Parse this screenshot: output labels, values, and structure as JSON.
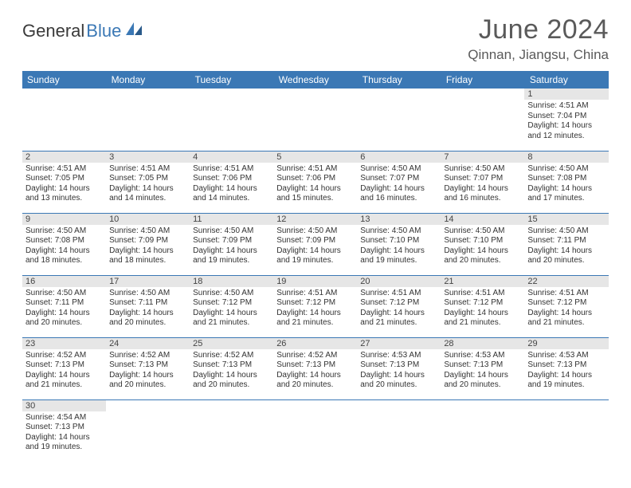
{
  "logo": {
    "text1": "General",
    "text2": "Blue"
  },
  "title": "June 2024",
  "location": "Qinnan, Jiangsu, China",
  "colors": {
    "header_bg": "#3b78b5",
    "header_text": "#ffffff",
    "daynum_bg": "#e6e6e6",
    "row_border": "#3b78b5",
    "title_color": "#5a5a5a"
  },
  "weekdays": [
    "Sunday",
    "Monday",
    "Tuesday",
    "Wednesday",
    "Thursday",
    "Friday",
    "Saturday"
  ],
  "labels": {
    "sunrise": "Sunrise:",
    "sunset": "Sunset:",
    "daylight_prefix": "Daylight:",
    "hours_word": "hours",
    "and_word": "and",
    "minutes_word": "minutes."
  },
  "grid": [
    [
      null,
      null,
      null,
      null,
      null,
      null,
      {
        "n": 1,
        "sr": "4:51 AM",
        "ss": "7:04 PM",
        "dh": 14,
        "dm": 12
      }
    ],
    [
      {
        "n": 2,
        "sr": "4:51 AM",
        "ss": "7:05 PM",
        "dh": 14,
        "dm": 13
      },
      {
        "n": 3,
        "sr": "4:51 AM",
        "ss": "7:05 PM",
        "dh": 14,
        "dm": 14
      },
      {
        "n": 4,
        "sr": "4:51 AM",
        "ss": "7:06 PM",
        "dh": 14,
        "dm": 14
      },
      {
        "n": 5,
        "sr": "4:51 AM",
        "ss": "7:06 PM",
        "dh": 14,
        "dm": 15
      },
      {
        "n": 6,
        "sr": "4:50 AM",
        "ss": "7:07 PM",
        "dh": 14,
        "dm": 16
      },
      {
        "n": 7,
        "sr": "4:50 AM",
        "ss": "7:07 PM",
        "dh": 14,
        "dm": 16
      },
      {
        "n": 8,
        "sr": "4:50 AM",
        "ss": "7:08 PM",
        "dh": 14,
        "dm": 17
      }
    ],
    [
      {
        "n": 9,
        "sr": "4:50 AM",
        "ss": "7:08 PM",
        "dh": 14,
        "dm": 18
      },
      {
        "n": 10,
        "sr": "4:50 AM",
        "ss": "7:09 PM",
        "dh": 14,
        "dm": 18
      },
      {
        "n": 11,
        "sr": "4:50 AM",
        "ss": "7:09 PM",
        "dh": 14,
        "dm": 19
      },
      {
        "n": 12,
        "sr": "4:50 AM",
        "ss": "7:09 PM",
        "dh": 14,
        "dm": 19
      },
      {
        "n": 13,
        "sr": "4:50 AM",
        "ss": "7:10 PM",
        "dh": 14,
        "dm": 19
      },
      {
        "n": 14,
        "sr": "4:50 AM",
        "ss": "7:10 PM",
        "dh": 14,
        "dm": 20
      },
      {
        "n": 15,
        "sr": "4:50 AM",
        "ss": "7:11 PM",
        "dh": 14,
        "dm": 20
      }
    ],
    [
      {
        "n": 16,
        "sr": "4:50 AM",
        "ss": "7:11 PM",
        "dh": 14,
        "dm": 20
      },
      {
        "n": 17,
        "sr": "4:50 AM",
        "ss": "7:11 PM",
        "dh": 14,
        "dm": 20
      },
      {
        "n": 18,
        "sr": "4:50 AM",
        "ss": "7:12 PM",
        "dh": 14,
        "dm": 21
      },
      {
        "n": 19,
        "sr": "4:51 AM",
        "ss": "7:12 PM",
        "dh": 14,
        "dm": 21
      },
      {
        "n": 20,
        "sr": "4:51 AM",
        "ss": "7:12 PM",
        "dh": 14,
        "dm": 21
      },
      {
        "n": 21,
        "sr": "4:51 AM",
        "ss": "7:12 PM",
        "dh": 14,
        "dm": 21
      },
      {
        "n": 22,
        "sr": "4:51 AM",
        "ss": "7:12 PM",
        "dh": 14,
        "dm": 21
      }
    ],
    [
      {
        "n": 23,
        "sr": "4:52 AM",
        "ss": "7:13 PM",
        "dh": 14,
        "dm": 21
      },
      {
        "n": 24,
        "sr": "4:52 AM",
        "ss": "7:13 PM",
        "dh": 14,
        "dm": 20
      },
      {
        "n": 25,
        "sr": "4:52 AM",
        "ss": "7:13 PM",
        "dh": 14,
        "dm": 20
      },
      {
        "n": 26,
        "sr": "4:52 AM",
        "ss": "7:13 PM",
        "dh": 14,
        "dm": 20
      },
      {
        "n": 27,
        "sr": "4:53 AM",
        "ss": "7:13 PM",
        "dh": 14,
        "dm": 20
      },
      {
        "n": 28,
        "sr": "4:53 AM",
        "ss": "7:13 PM",
        "dh": 14,
        "dm": 20
      },
      {
        "n": 29,
        "sr": "4:53 AM",
        "ss": "7:13 PM",
        "dh": 14,
        "dm": 19
      }
    ],
    [
      {
        "n": 30,
        "sr": "4:54 AM",
        "ss": "7:13 PM",
        "dh": 14,
        "dm": 19
      },
      null,
      null,
      null,
      null,
      null,
      null
    ]
  ]
}
